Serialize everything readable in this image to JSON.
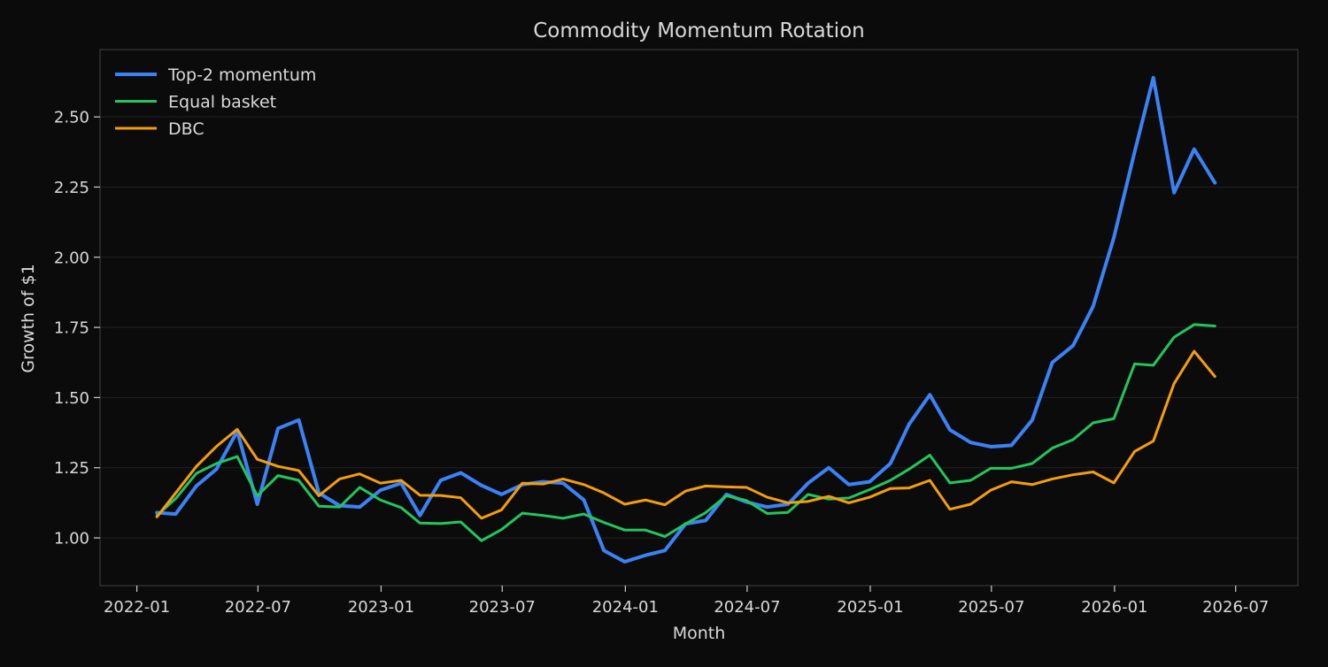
{
  "chart_data": {
    "type": "line",
    "title": "Commodity Momentum Rotation",
    "xlabel": "Month",
    "ylabel": "Growth of $1",
    "x_tick_labels": [
      "2022-01",
      "2022-07",
      "2023-01",
      "2023-07",
      "2024-01",
      "2024-07",
      "2025-01",
      "2025-07",
      "2026-01",
      "2026-07"
    ],
    "y_tick_labels": [
      "1.00",
      "1.25",
      "1.50",
      "1.75",
      "2.00",
      "2.25",
      "2.50"
    ],
    "y_ticks": [
      1.0,
      1.25,
      1.5,
      1.75,
      2.0,
      2.25,
      2.5
    ],
    "ylim": [
      0.83,
      2.74
    ],
    "xlim": [
      "2021-11-07",
      "2026-10-02"
    ],
    "grid": "horizontal",
    "legend_position": "top-left",
    "background": "#0b0b0b",
    "x": [
      "2022-01-31",
      "2022-02-28",
      "2022-03-31",
      "2022-04-30",
      "2022-05-31",
      "2022-06-30",
      "2022-07-31",
      "2022-08-31",
      "2022-09-30",
      "2022-10-31",
      "2022-11-30",
      "2022-12-31",
      "2023-01-31",
      "2023-02-28",
      "2023-03-31",
      "2023-04-30",
      "2023-05-31",
      "2023-06-30",
      "2023-07-31",
      "2023-08-31",
      "2023-09-30",
      "2023-10-31",
      "2023-11-30",
      "2023-12-31",
      "2024-01-31",
      "2024-02-29",
      "2024-03-31",
      "2024-04-30",
      "2024-05-31",
      "2024-06-30",
      "2024-07-31",
      "2024-08-31",
      "2024-09-30",
      "2024-10-31",
      "2024-11-30",
      "2024-12-31",
      "2025-01-31",
      "2025-02-28",
      "2025-03-31",
      "2025-04-30",
      "2025-05-31",
      "2025-06-30",
      "2025-07-31",
      "2025-08-31",
      "2025-09-30",
      "2025-10-31",
      "2025-11-30",
      "2025-12-31",
      "2026-01-31",
      "2026-02-28",
      "2026-03-31",
      "2026-04-30",
      "2026-05-31"
    ],
    "series": [
      {
        "name": "Top-2 momentum",
        "color": "#3b82f6",
        "width": 4,
        "values": [
          1.09,
          1.085,
          1.185,
          1.245,
          1.38,
          1.12,
          1.39,
          1.42,
          1.16,
          1.115,
          1.11,
          1.17,
          1.195,
          1.08,
          1.205,
          1.232,
          1.187,
          1.155,
          1.19,
          1.2,
          1.195,
          1.135,
          0.955,
          0.915,
          0.938,
          0.955,
          1.05,
          1.062,
          1.155,
          1.128,
          1.11,
          1.12,
          1.195,
          1.25,
          1.19,
          1.2,
          1.265,
          1.405,
          1.51,
          1.385,
          1.34,
          1.325,
          1.33,
          1.42,
          1.625,
          1.685,
          1.825,
          2.07,
          2.375,
          2.64,
          2.23,
          2.385,
          2.265
        ]
      },
      {
        "name": "Equal basket",
        "color": "#22c55e",
        "width": 3,
        "values": [
          1.08,
          1.14,
          1.23,
          1.265,
          1.29,
          1.15,
          1.222,
          1.205,
          1.113,
          1.11,
          1.18,
          1.135,
          1.108,
          1.053,
          1.051,
          1.057,
          0.99,
          1.03,
          1.088,
          1.08,
          1.07,
          1.085,
          1.055,
          1.028,
          1.028,
          1.005,
          1.05,
          1.09,
          1.15,
          1.133,
          1.087,
          1.091,
          1.155,
          1.138,
          1.142,
          1.172,
          1.205,
          1.245,
          1.295,
          1.196,
          1.205,
          1.248,
          1.248,
          1.265,
          1.32,
          1.35,
          1.41,
          1.425,
          1.62,
          1.615,
          1.715,
          1.76,
          1.755
        ]
      },
      {
        "name": "DBC",
        "color": "#f59e0b",
        "width": 3,
        "values": [
          1.075,
          1.16,
          1.255,
          1.326,
          1.387,
          1.28,
          1.255,
          1.24,
          1.15,
          1.21,
          1.228,
          1.195,
          1.205,
          1.152,
          1.151,
          1.143,
          1.07,
          1.1,
          1.195,
          1.192,
          1.21,
          1.19,
          1.16,
          1.12,
          1.135,
          1.118,
          1.167,
          1.185,
          1.182,
          1.18,
          1.145,
          1.125,
          1.13,
          1.148,
          1.125,
          1.145,
          1.176,
          1.178,
          1.205,
          1.102,
          1.12,
          1.17,
          1.2,
          1.19,
          1.21,
          1.225,
          1.235,
          1.196,
          1.308,
          1.345,
          1.55,
          1.665,
          1.575
        ]
      }
    ]
  }
}
